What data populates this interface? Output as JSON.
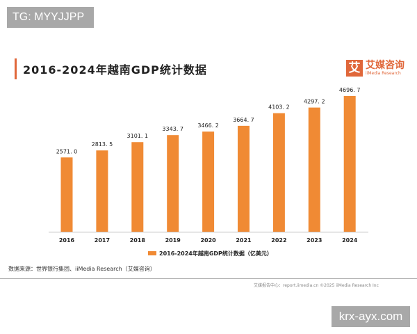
{
  "watermarks": {
    "top_left": "TG: MYYJJPP",
    "bottom_right": "krx-ayx.com"
  },
  "logo": {
    "mark": "艾",
    "name_cn": "艾媒咨询",
    "name_en": "iiMedia Research"
  },
  "source": "数据来源：世界银行集团、iiMedia Research（艾媒咨询）",
  "footer": "艾媒报告中心：report.iimedia.cn  ©2025  iiMedia Research Inc",
  "colors": {
    "bar": "#f08a34",
    "accent": "#e0673a"
  },
  "chart_data": {
    "type": "bar",
    "title": "2016-2024年越南GDP统计数据",
    "categories": [
      "2016",
      "2017",
      "2018",
      "2019",
      "2020",
      "2021",
      "2022",
      "2023",
      "2024"
    ],
    "series": [
      {
        "name": "2016-2024年越南GDP统计数据（亿美元）",
        "values": [
          2571.0,
          2813.5,
          3101.1,
          3343.7,
          3466.2,
          3664.7,
          4103.2,
          4297.2,
          4696.7
        ]
      }
    ],
    "ylim": [
      0,
      4696.7
    ],
    "grid": false,
    "legend": "bottom",
    "xlabel": "",
    "ylabel": ""
  }
}
